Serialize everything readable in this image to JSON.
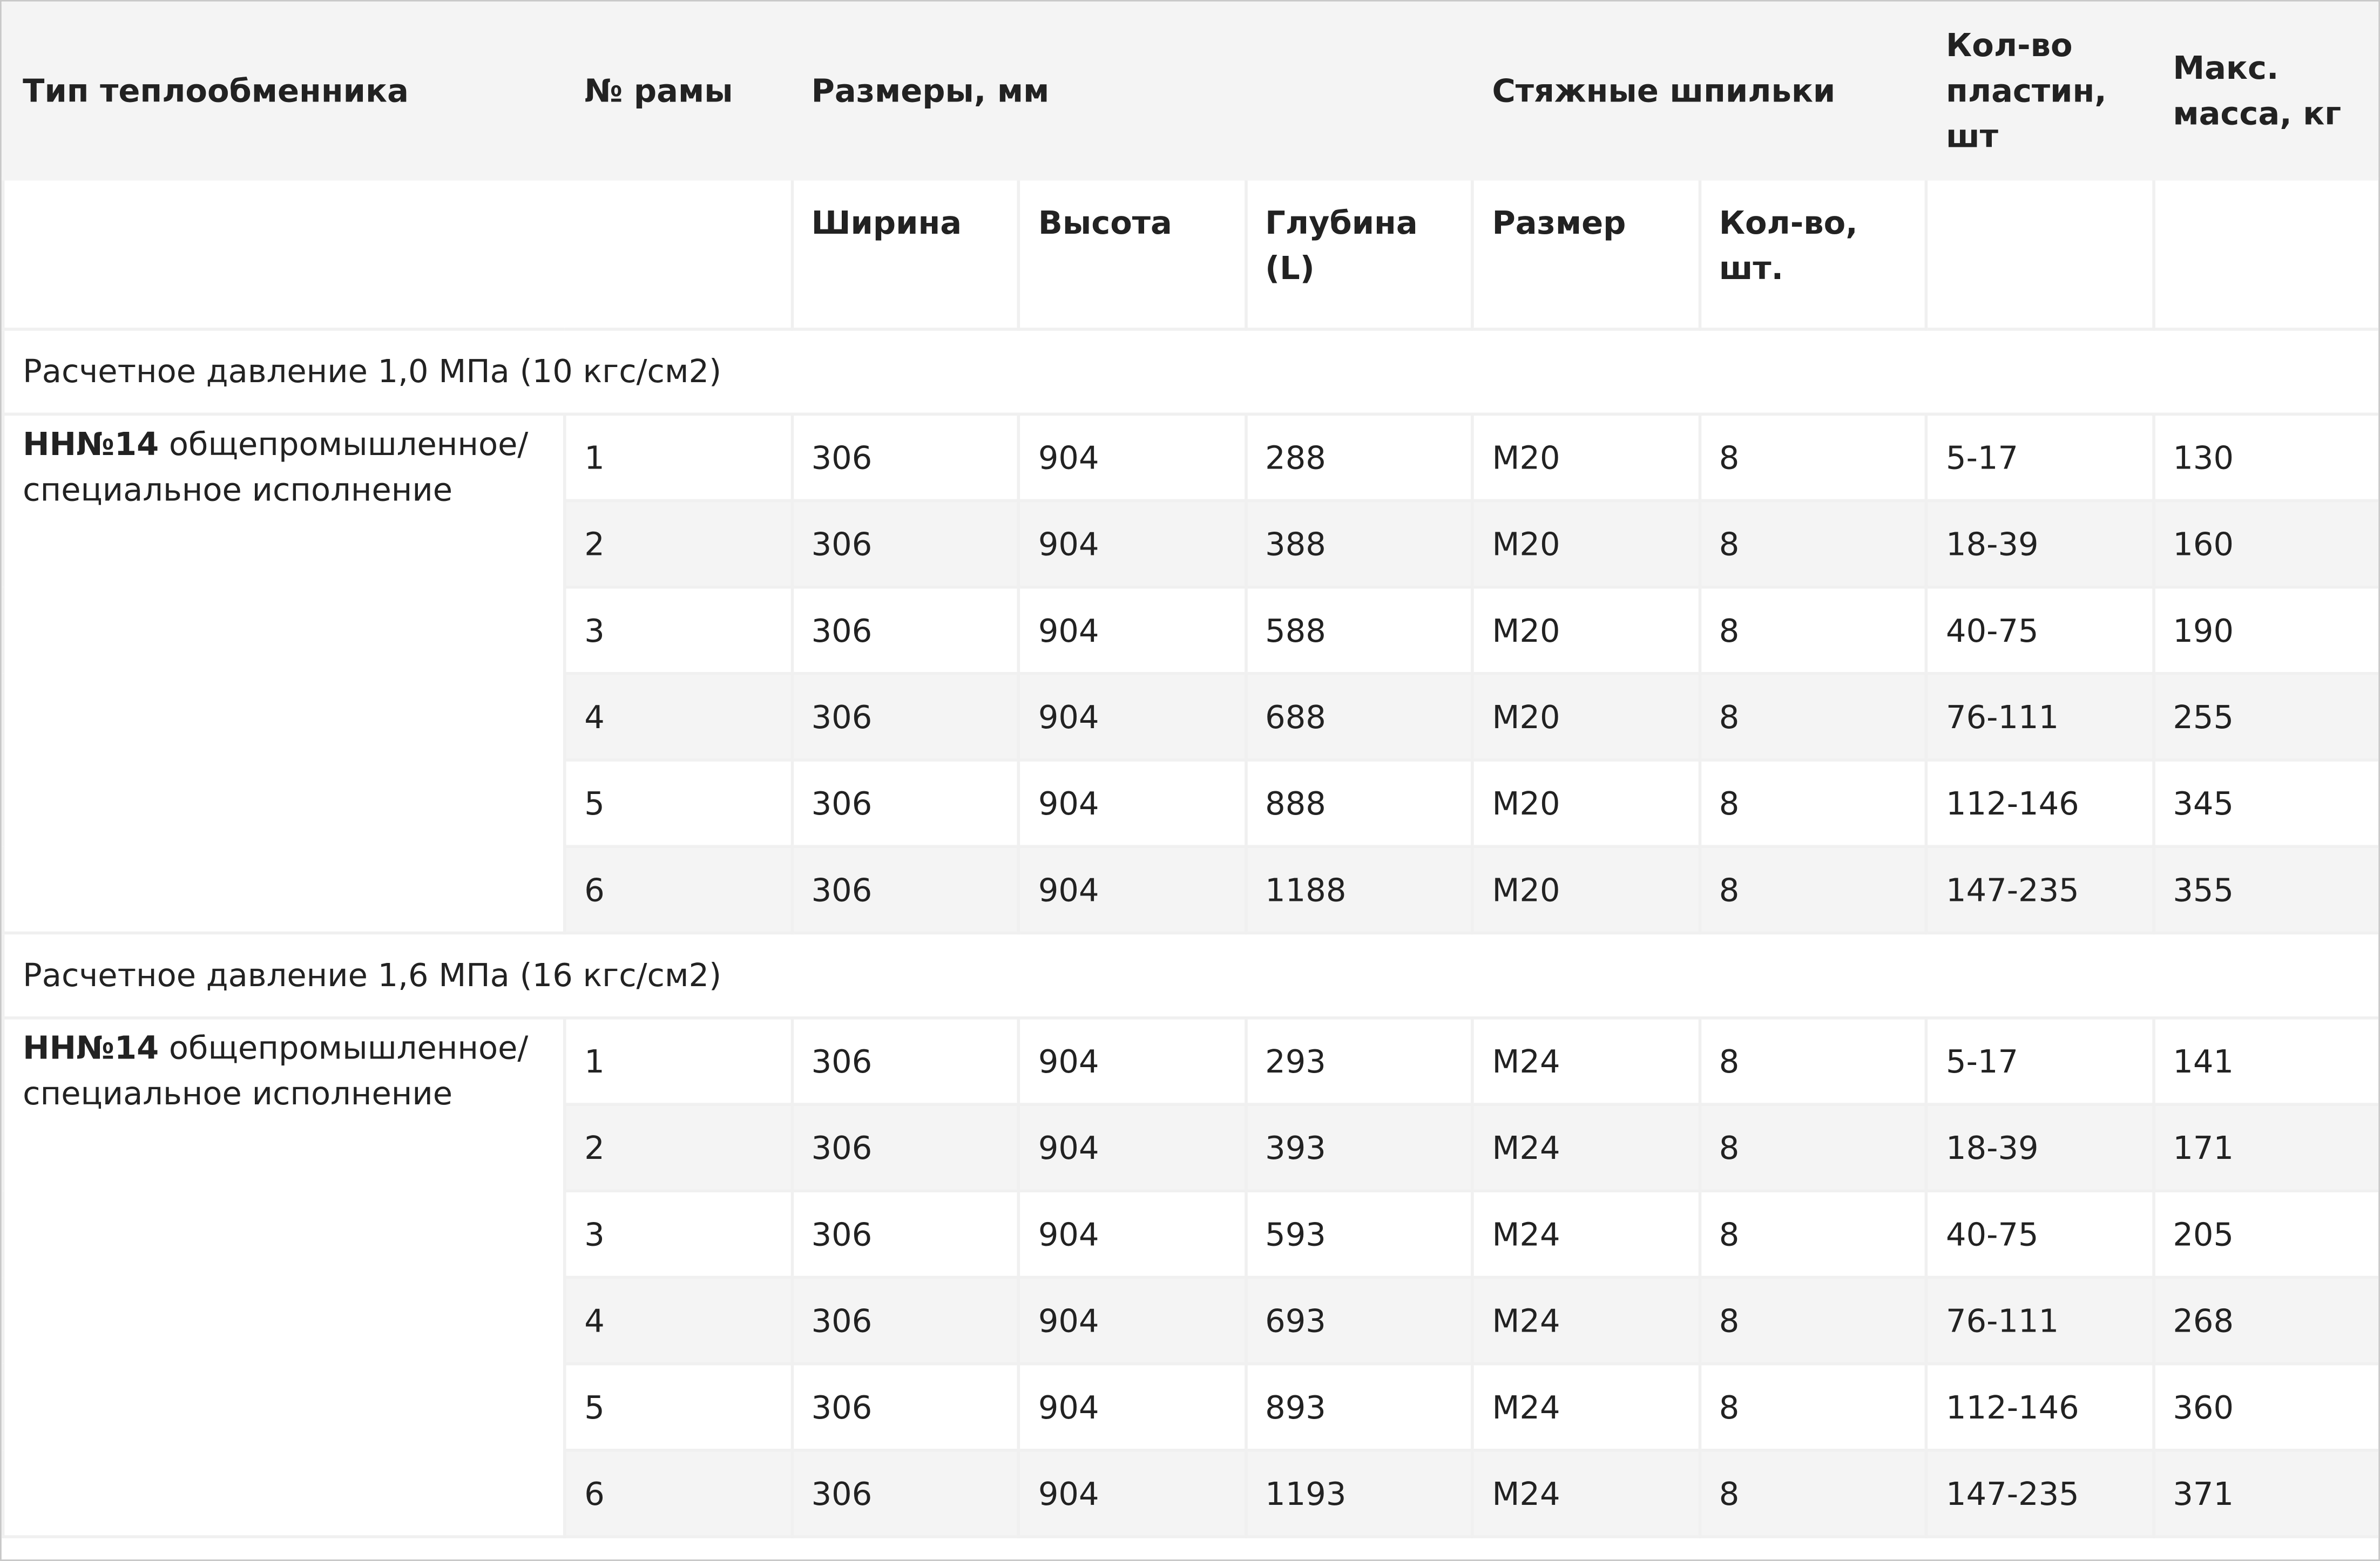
{
  "header": {
    "columns": [
      "Тип теплообменника",
      "№ рамы",
      "Размеры, мм",
      "Стяжные шпильки",
      "Кол-во пластин, шт",
      "Макс. масса, кг"
    ],
    "subcolumns": [
      "Ширина",
      "Высота",
      "Глубина (L)",
      "Размер",
      "Кол-во, шт."
    ]
  },
  "sections": [
    {
      "title": "Расчетное давление 1,0 МПа (10 кгс/см2)",
      "type_bold": "НН№14",
      "type_text": " общепромышленное/ специальное исполнение",
      "rows": [
        [
          "1",
          "306",
          "904",
          "288",
          "M20",
          "8",
          "5-17",
          "130"
        ],
        [
          "2",
          "306",
          "904",
          "388",
          "M20",
          "8",
          "18-39",
          "160"
        ],
        [
          "3",
          "306",
          "904",
          "588",
          "M20",
          "8",
          "40-75",
          "190"
        ],
        [
          "4",
          "306",
          "904",
          "688",
          "M20",
          "8",
          "76-111",
          "255"
        ],
        [
          "5",
          "306",
          "904",
          "888",
          "M20",
          "8",
          "112-146",
          "345"
        ],
        [
          "6",
          "306",
          "904",
          "1188",
          "M20",
          "8",
          "147-235",
          "355"
        ]
      ]
    },
    {
      "title": "Расчетное давление 1,6 МПа (16 кгс/см2)",
      "type_bold": "НН№14",
      "type_text": " общепромышленное/ специальное исполнение",
      "rows": [
        [
          "1",
          "306",
          "904",
          "293",
          "M24",
          "8",
          "5-17",
          "141"
        ],
        [
          "2",
          "306",
          "904",
          "393",
          "M24",
          "8",
          "18-39",
          "171"
        ],
        [
          "3",
          "306",
          "904",
          "593",
          "M24",
          "8",
          "40-75",
          "205"
        ],
        [
          "4",
          "306",
          "904",
          "693",
          "M24",
          "8",
          "76-111",
          "268"
        ],
        [
          "5",
          "306",
          "904",
          "893",
          "M24",
          "8",
          "112-146",
          "360"
        ],
        [
          "6",
          "306",
          "904",
          "1193",
          "M24",
          "8",
          "147-235",
          "371"
        ]
      ]
    }
  ]
}
